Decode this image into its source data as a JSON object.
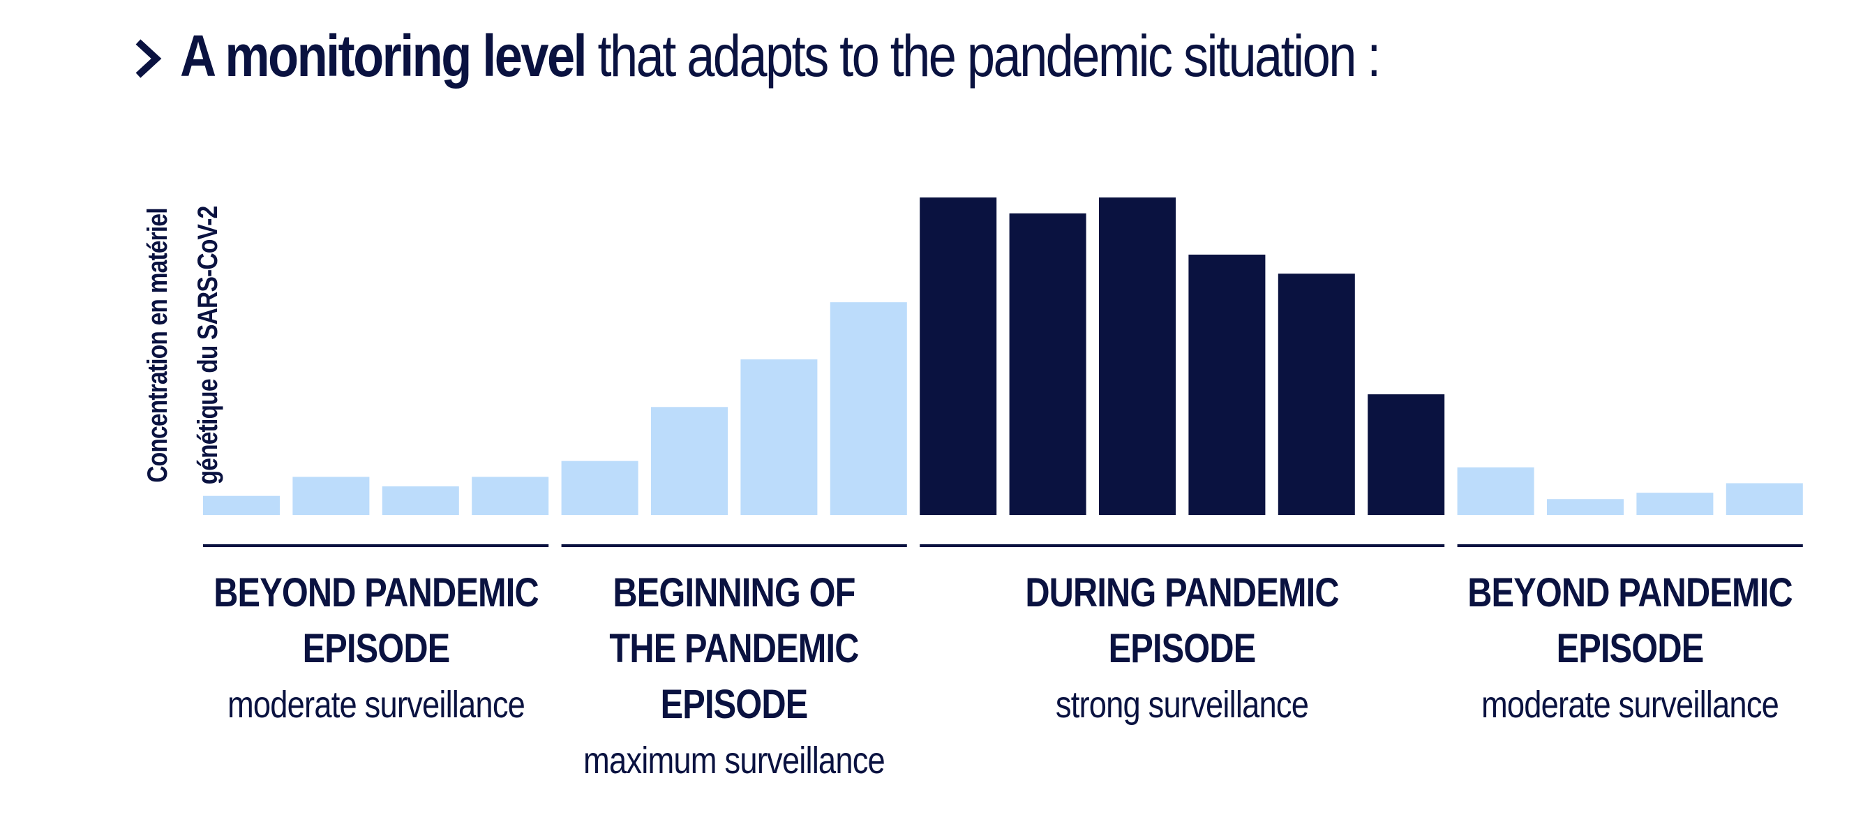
{
  "title": {
    "strong": "A monitoring level",
    "rest": "that adapts to the pandemic situation :"
  },
  "icons": {
    "title_marker": "chevron-right-icon"
  },
  "colors": {
    "light": "#bcdcfb",
    "dark": "#0a1240",
    "text": "#0a1240"
  },
  "chart_data": {
    "type": "bar",
    "ylabel": "Concentration en matériel génétique du SARS-CoV-2",
    "ylabel_lines": [
      "Concentration en matériel",
      "génétique du SARS-CoV-2"
    ],
    "xlabel": "",
    "ylim": [
      0,
      100
    ],
    "grid": false,
    "series": [
      {
        "values": [
          6,
          12,
          9,
          12,
          17,
          34,
          49,
          67,
          100,
          95,
          100,
          82,
          76,
          38,
          15,
          5,
          7,
          10
        ],
        "colors": [
          "light",
          "light",
          "light",
          "light",
          "light",
          "light",
          "light",
          "light",
          "dark",
          "dark",
          "dark",
          "dark",
          "dark",
          "dark",
          "light",
          "light",
          "light",
          "light"
        ]
      }
    ],
    "phases": [
      {
        "name_lines": [
          "BEYOND PANDEMIC",
          "EPISODE"
        ],
        "level": "moderate surveillance",
        "bars": [
          0,
          3
        ]
      },
      {
        "name_lines": [
          "BEGINNING OF",
          "THE PANDEMIC",
          "EPISODE"
        ],
        "level": "maximum surveillance",
        "bars": [
          4,
          7
        ]
      },
      {
        "name_lines": [
          "DURING PANDEMIC",
          "EPISODE"
        ],
        "level": "strong surveillance",
        "bars": [
          8,
          13
        ]
      },
      {
        "name_lines": [
          "BEYOND PANDEMIC",
          "EPISODE"
        ],
        "level": "moderate surveillance",
        "bars": [
          14,
          17
        ]
      }
    ]
  }
}
